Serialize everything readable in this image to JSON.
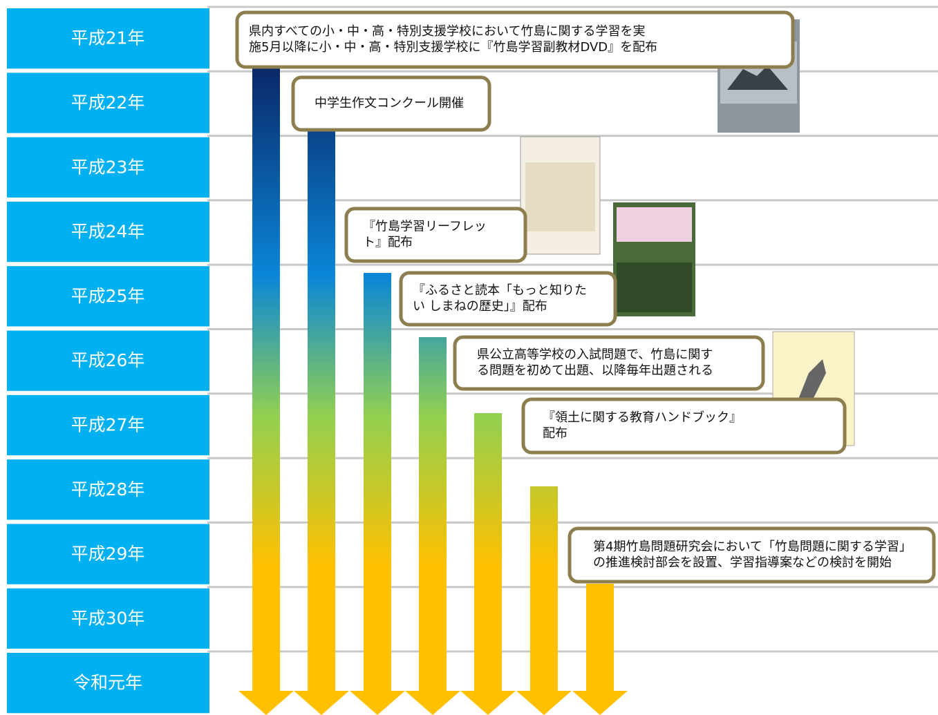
{
  "years": [
    "平成21年",
    "平成22年",
    "平成23年",
    "平成24年",
    "平成25年",
    "平成26年",
    "平成27年",
    "平成28年",
    "平成29年",
    "平成30年",
    "令和元年"
  ],
  "events": [
    {
      "lines": [
        "県内すべての小・中・高・特別支援学校において竹島に関する学習を実",
        "施5月以降に小・中・高・特別支援学校に『竹島学習副教材DVD』を配布"
      ]
    },
    {
      "lines": [
        "中学生作文コンクール開催"
      ]
    },
    {
      "lines": [
        "『竹島学習リーフレッ",
        "ト』配布"
      ]
    },
    {
      "lines": [
        "『ふるさと読本「もっと知りた",
        "い しまねの歴史」』配布"
      ]
    },
    {
      "lines": [
        "県公立高等学校の入試問題で、竹島に関す",
        "る問題を初めて出題、以降毎年出題される"
      ]
    },
    {
      "lines": [
        "『領土に関する教育ハンドブック』",
        "配布"
      ]
    },
    {
      "lines": [
        "第4期竹島問題研究会において「竹島問題に関する学習」",
        "の推進検討部会を設置、学習指導案などの検討を開始"
      ]
    }
  ]
}
